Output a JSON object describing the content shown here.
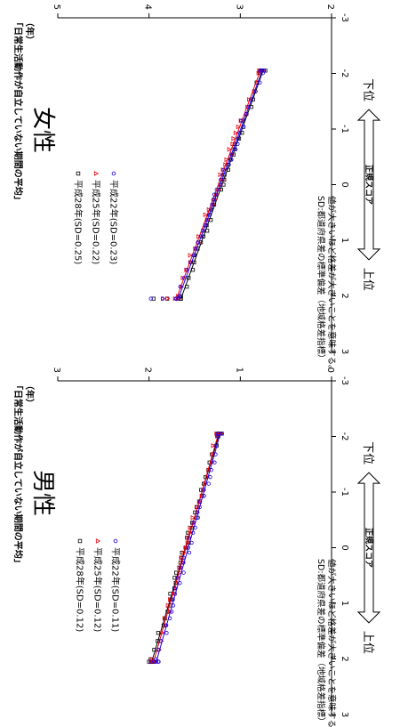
{
  "ylabel": "「日常生活動作が自立していない期間の平均」",
  "yunit": "（年）",
  "xlabel": "正規スコア",
  "lower_label": "下位",
  "upper_label": "上位",
  "note_line1": "SD:都道府県差の標準偏差（地域格差指標）",
  "note_line2": "値が大きいほど格差が大きいことを意味する。",
  "colors": {
    "h28": "#000000",
    "h25": "#e8000b",
    "h22": "#1f00e0"
  },
  "chart_data": [
    {
      "type": "scatter",
      "title": "男性",
      "xlim": [
        -3,
        3
      ],
      "ylim": [
        0,
        3
      ],
      "xticks": [
        "-3",
        "-2",
        "-1",
        "0",
        "1",
        "2",
        "3"
      ],
      "yticks": [
        "0",
        "1",
        "2",
        "3"
      ],
      "series": [
        {
          "name": "平成28年(SD=0.12)",
          "marker": "square",
          "color": "#000000",
          "x_start": -2.05,
          "x_end": 2.05,
          "y_start": 1.23,
          "y_end": 1.97,
          "top": [
            2.0,
            1.97
          ]
        },
        {
          "name": "平成25年(SD=0.12)",
          "marker": "triangle",
          "color": "#e8000b",
          "x_start": -2.05,
          "x_end": 2.05,
          "y_start": 1.24,
          "y_end": 1.95,
          "top": [
            1.98,
            1.96
          ]
        },
        {
          "name": "平成22年(SD=0.11)",
          "marker": "circle",
          "color": "#1f00e0",
          "x_start": -2.05,
          "x_end": 2.05,
          "y_start": 1.22,
          "y_end": 1.92,
          "top": [
            1.98,
            1.94
          ]
        }
      ]
    },
    {
      "type": "scatter",
      "title": "女性",
      "xlim": [
        -3,
        3
      ],
      "ylim": [
        2,
        5
      ],
      "xticks": [
        "-3",
        "-2",
        "-1",
        "0",
        "1",
        "2",
        "3"
      ],
      "yticks": [
        "2",
        "3",
        "4",
        "5"
      ],
      "series": [
        {
          "name": "平成28年(SD=0.25)",
          "marker": "square",
          "color": "#000000",
          "x_start": -2.05,
          "x_end": 2.05,
          "y_start": 2.75,
          "y_end": 3.65,
          "top": [
            3.95,
            3.8
          ]
        },
        {
          "name": "平成25年(SD=0.22)",
          "marker": "triangle",
          "color": "#e8000b",
          "x_start": -2.05,
          "x_end": 2.05,
          "y_start": 2.78,
          "y_end": 3.7,
          "top": [
            3.85,
            3.8
          ]
        },
        {
          "name": "平成22年(SD=0.23)",
          "marker": "circle",
          "color": "#1f00e0",
          "x_start": -2.05,
          "x_end": 2.05,
          "y_start": 2.76,
          "y_end": 3.68,
          "top": [
            3.98,
            3.85
          ]
        }
      ]
    }
  ]
}
